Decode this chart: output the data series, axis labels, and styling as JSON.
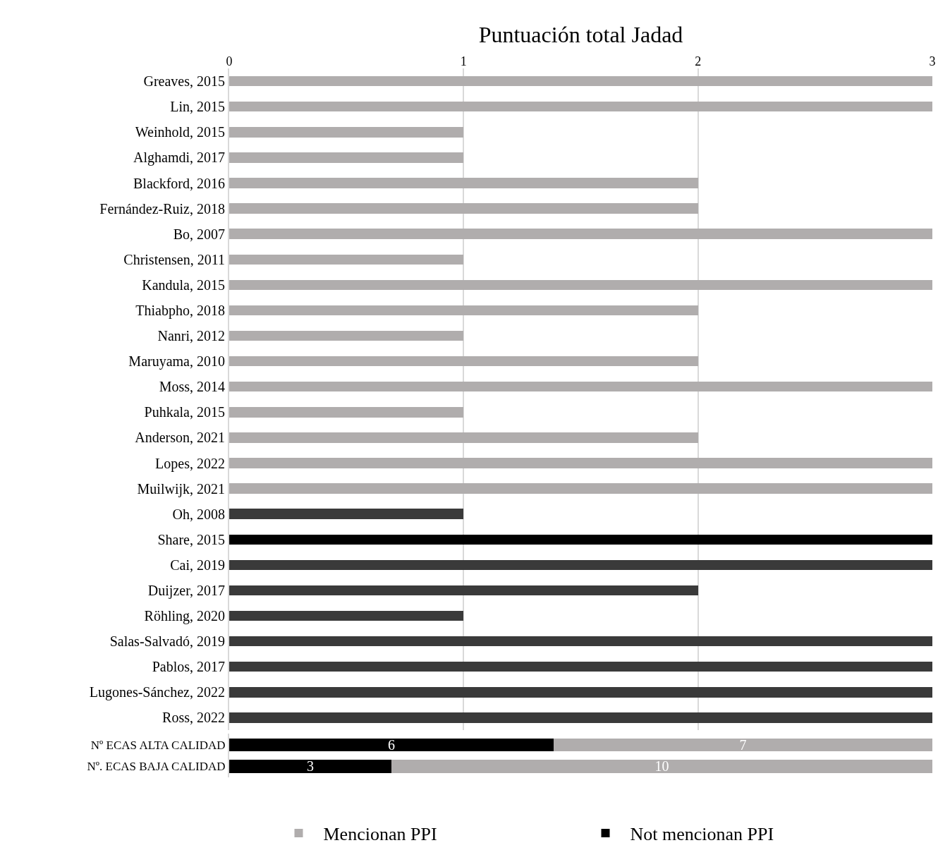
{
  "chart_data": [
    {
      "type": "bar",
      "orientation": "horizontal",
      "title": "Puntuación total Jadad",
      "categories": [
        "Greaves, 2015",
        "Lin, 2015",
        "Weinhold, 2015",
        "Alghamdi, 2017",
        "Blackford, 2016",
        "Fernández-Ruiz, 2018",
        "Bo, 2007",
        "Christensen, 2011",
        "Kandula, 2015",
        "Thiabpho, 2018",
        "Nanri, 2012",
        "Maruyama, 2010",
        "Moss, 2014",
        "Puhkala, 2015",
        "Anderson, 2021",
        "Lopes, 2022",
        "Muilwijk, 2021",
        "Oh, 2008",
        "Share, 2015",
        "Cai, 2019",
        "Duijzer, 2017",
        "Röhling, 2020",
        "Salas-Salvadó, 2019",
        "Pablos, 2017",
        "Lugones-Sánchez, 2022",
        "Ross, 2022"
      ],
      "values": [
        3,
        3,
        1,
        1,
        2,
        2,
        3,
        1,
        3,
        2,
        1,
        2,
        3,
        1,
        2,
        3,
        3,
        1,
        3,
        3,
        2,
        1,
        3,
        3,
        3,
        3
      ],
      "colors": [
        "#b0adad",
        "#b0adad",
        "#b0adad",
        "#b0adad",
        "#b0adad",
        "#b0adad",
        "#b0adad",
        "#b0adad",
        "#b0adad",
        "#b0adad",
        "#b0adad",
        "#b0adad",
        "#b0adad",
        "#b0adad",
        "#b0adad",
        "#b0adad",
        "#b0adad",
        "#3a3a3a",
        "#000000",
        "#3a3a3a",
        "#3a3a3a",
        "#3a3a3a",
        "#3a3a3a",
        "#3a3a3a",
        "#3a3a3a",
        "#3a3a3a"
      ],
      "xlim": [
        0,
        3
      ],
      "xticks": [
        0,
        1,
        2,
        3
      ],
      "grid": "x"
    },
    {
      "type": "bar",
      "orientation": "horizontal",
      "stacked": true,
      "data_labels": true,
      "tick_labels": "y",
      "legend": "bottom",
      "categories": [
        "Nº ECAS ALTA CALIDAD",
        "Nº. ECAS BAJA CALIDAD"
      ],
      "series": [
        {
          "name": "Not mencionan PPI",
          "color": "#000000",
          "values": [
            6,
            3
          ]
        },
        {
          "name": "Mencionan PPI",
          "color": "#b0adad",
          "values": [
            7,
            10
          ]
        }
      ]
    }
  ]
}
